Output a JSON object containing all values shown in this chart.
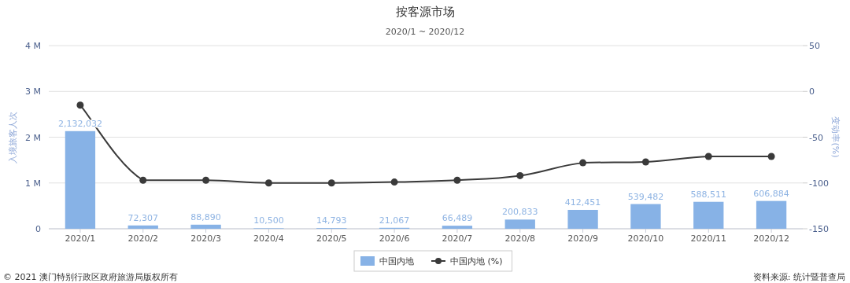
{
  "chart_data": {
    "type": "bar",
    "title": "按客源市场",
    "subtitle": "2020/1 ~ 2020/12",
    "ylabel": "入境旅客人次",
    "y2label": "变动率(%)",
    "categories": [
      "2020/1",
      "2020/2",
      "2020/3",
      "2020/4",
      "2020/5",
      "2020/6",
      "2020/7",
      "2020/8",
      "2020/9",
      "2020/10",
      "2020/11",
      "2020/12"
    ],
    "series": [
      {
        "name": "中国内地",
        "color": "#87b2e6",
        "values": [
          2132032,
          72307,
          88890,
          10500,
          14793,
          21067,
          66489,
          200833,
          412451,
          539482,
          588511,
          606884
        ],
        "value_labels": [
          "2,132,032",
          "72,307",
          "88,890",
          "10,500",
          "14,793",
          "21,067",
          "66,489",
          "200,833",
          "412,451",
          "539,482",
          "588,511",
          "606,884"
        ]
      },
      {
        "name": "中国内地 (%)",
        "type": "line",
        "axis": "y2",
        "color": "#3a3a3a",
        "marker": "circle",
        "values": [
          -15,
          -97,
          -97,
          -100,
          -100,
          -99,
          -97,
          -92,
          -78,
          -77,
          -71,
          -71
        ]
      }
    ],
    "ylim": [
      0,
      4000000
    ],
    "yticks": [
      0,
      {
        "value": 1000000,
        "label": "1 M"
      },
      {
        "value": 2000000,
        "label": "2 M"
      },
      {
        "value": 3000000,
        "label": "3 M"
      },
      {
        "value": 4000000,
        "label": "4 M"
      }
    ],
    "y2lim": [
      -150,
      50
    ],
    "y2ticks": [
      -150,
      -100,
      -50,
      0,
      50
    ],
    "grid": "y",
    "legend": "bottom",
    "annotations": [
      "© 2021 澳门特别行政区政府旅游局版权所有",
      "资料来源: 统计暨普查局"
    ]
  }
}
